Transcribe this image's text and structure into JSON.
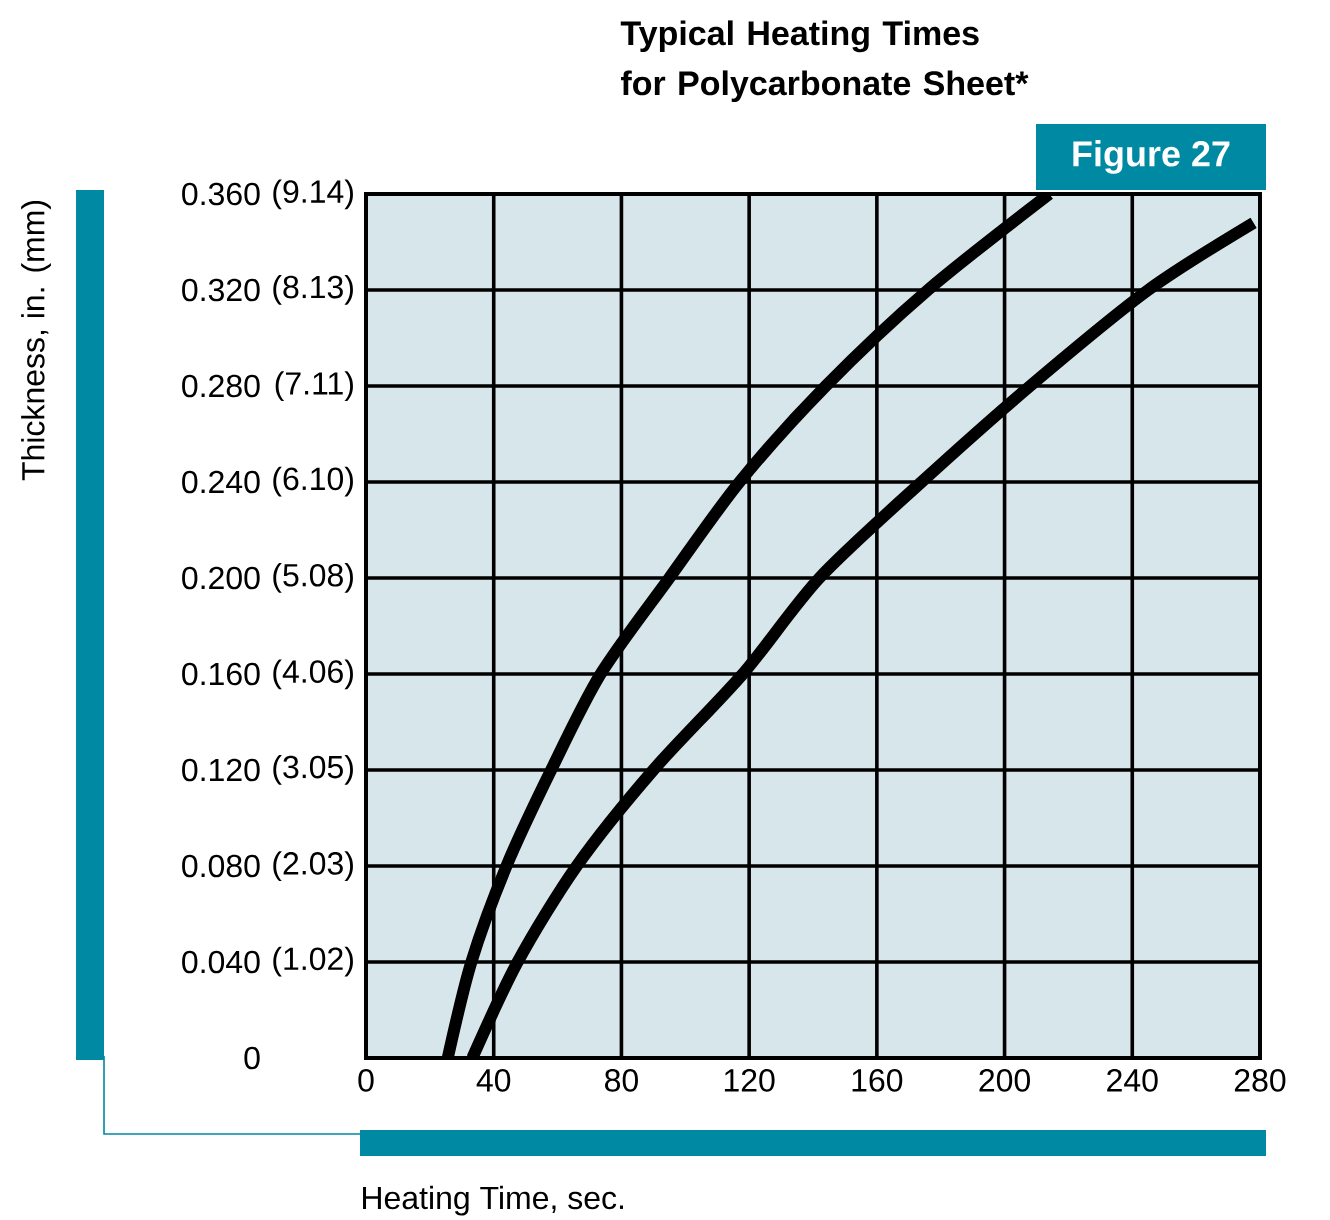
{
  "chart_data": {
    "type": "line",
    "title": "Typical Heating Times for Polycarbonate Sheet*",
    "xlabel": "Heating Time, sec.",
    "ylabel": "Thickness, in. (mm)",
    "annotations": [
      "Figure 27"
    ],
    "series": [
      {
        "color": "#000000",
        "x": [
          25.6,
          33,
          44,
          58,
          73.5,
          95,
          117,
          144,
          176,
          214
        ],
        "values": [
          0,
          0.04,
          0.08,
          0.12,
          0.16,
          0.2,
          0.24,
          0.28,
          0.32,
          0.36
        ]
      },
      {
        "color": "#000000",
        "x": [
          33.3,
          47.5,
          66,
          90,
          118,
          142,
          174,
          208,
          245,
          278
        ],
        "values": [
          0,
          0.04,
          0.08,
          0.12,
          0.16,
          0.2,
          0.24,
          0.28,
          0.32,
          0.348
        ]
      }
    ],
    "xlim": [
      0,
      280
    ],
    "xticks": [
      0,
      40,
      80,
      120,
      160,
      200,
      240,
      280
    ],
    "ylim": [
      0,
      0.36
    ],
    "yticks": [
      0,
      {
        "value": 0.04,
        "label": "0.040"
      },
      {
        "value": 0.08,
        "label": "0.080"
      },
      {
        "value": 0.12,
        "label": "0.120"
      },
      {
        "value": 0.16,
        "label": "0.160"
      },
      {
        "value": 0.2,
        "label": "0.200"
      },
      {
        "value": 0.24,
        "label": "0.240"
      },
      {
        "value": 0.28,
        "label": "0.280"
      },
      {
        "value": 0.32,
        "label": "0.320"
      },
      {
        "value": 0.36,
        "label": "0.360"
      }
    ],
    "y2lim": [
      0,
      9.144
    ],
    "y2ticks": [
      {
        "value": 1.02,
        "label": "(1.02)"
      },
      {
        "value": 2.03,
        "label": "(2.03)"
      },
      {
        "value": 3.05,
        "label": "(3.05)"
      },
      {
        "value": 4.06,
        "label": "(4.06)"
      },
      {
        "value": 5.08,
        "label": "(5.08)"
      },
      {
        "value": 6.1,
        "label": "(6.10)"
      },
      {
        "value": 7.11,
        "label": "(7.11)"
      },
      {
        "value": 8.13,
        "label": "(8.13)"
      },
      {
        "value": 9.14,
        "label": "(9.14)"
      }
    ],
    "grid": true,
    "marker": "none",
    "line_style": "solid"
  }
}
